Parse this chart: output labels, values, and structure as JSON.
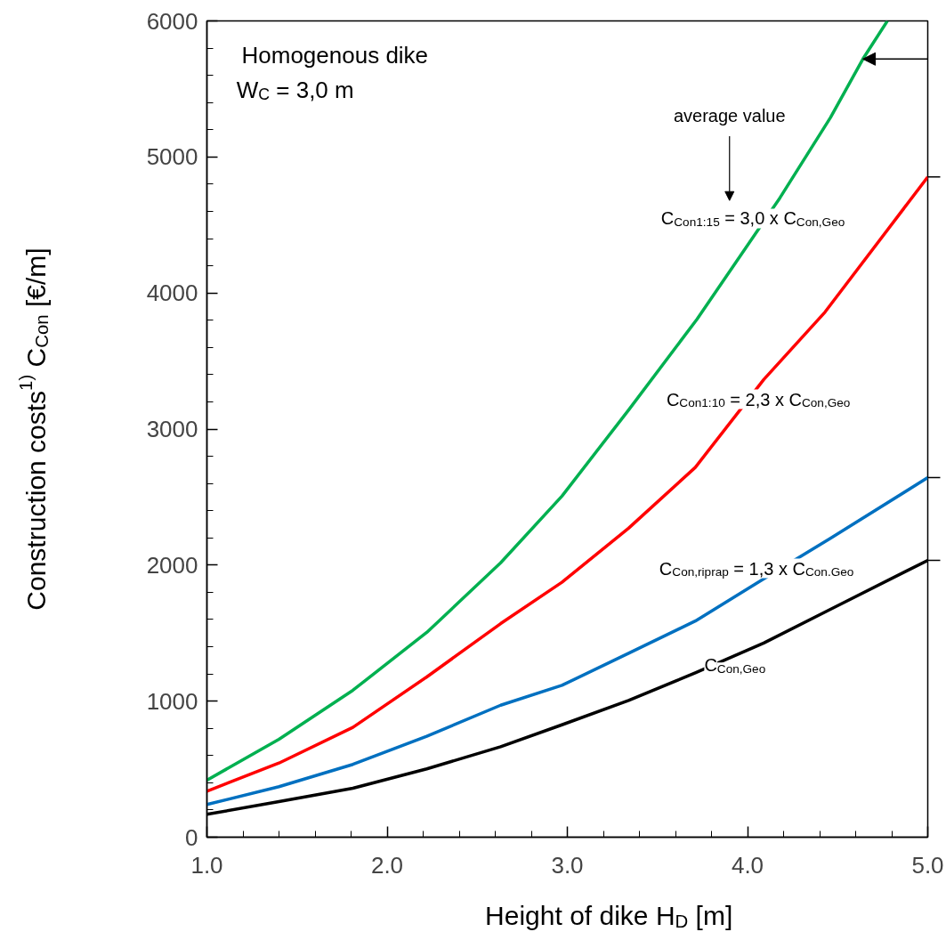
{
  "chart_data": {
    "type": "line",
    "xlabel": "Height of dike H$_{D}$ [m]",
    "ylabel": "Construction costs$^{1)}$ C$_{Con}$ [€/m]",
    "series": [
      {
        "color": "#00b050",
        "x": [
          1.0,
          1.4,
          1.81,
          2.22,
          2.63,
          2.97,
          3.34,
          3.72,
          4.18,
          4.46,
          4.64,
          4.776
        ],
        "values": [
          419,
          720,
          1080,
          1505,
          2017,
          2507,
          3140,
          3808,
          4700,
          5289,
          5720,
          6000
        ]
      },
      {
        "color": "#ff0000",
        "x": [
          1.0,
          1.4,
          1.81,
          2.22,
          2.63,
          2.97,
          3.34,
          3.71,
          4.09,
          4.43,
          5.0
        ],
        "values": [
          338,
          545,
          807,
          1178,
          1570,
          1874,
          2271,
          2718,
          3364,
          3860,
          4853
        ]
      },
      {
        "color": "#0070c0",
        "x": [
          1.0,
          1.4,
          1.81,
          2.22,
          2.63,
          2.97,
          3.34,
          3.71,
          4.09,
          4.46,
          5.0
        ],
        "values": [
          240,
          371,
          535,
          742,
          970,
          1116,
          1352,
          1589,
          1899,
          2197,
          2643
        ]
      },
      {
        "color": "#000000",
        "x": [
          1.0,
          1.4,
          1.81,
          2.22,
          2.63,
          2.97,
          3.34,
          3.71,
          4.09,
          4.46,
          5.0
        ],
        "values": [
          168,
          262,
          360,
          502,
          665,
          826,
          1005,
          1208,
          1427,
          1675,
          2035
        ]
      }
    ],
    "xlim": [
      1.0,
      5.0
    ],
    "ylim": [
      0,
      6000
    ],
    "xticks": [
      {
        "value": 1,
        "label": "1.0"
      },
      {
        "value": 1.2,
        "label": null
      },
      {
        "value": 1.4,
        "label": null
      },
      {
        "value": 1.6,
        "label": null
      },
      {
        "value": 1.8,
        "label": null
      },
      {
        "value": 2,
        "label": "2.0"
      },
      {
        "value": 2.2,
        "label": null
      },
      {
        "value": 2.4,
        "label": null
      },
      {
        "value": 2.6,
        "label": null
      },
      {
        "value": 2.8,
        "label": null
      },
      {
        "value": 3,
        "label": "3.0"
      },
      {
        "value": 3.2,
        "label": null
      },
      {
        "value": 3.4,
        "label": null
      },
      {
        "value": 3.6,
        "label": null
      },
      {
        "value": 3.8,
        "label": null
      },
      {
        "value": 4,
        "label": "4.0"
      },
      {
        "value": 4.2,
        "label": null
      },
      {
        "value": 4.4,
        "label": null
      },
      {
        "value": 4.6,
        "label": null
      },
      {
        "value": 4.8,
        "label": null
      },
      {
        "value": 5,
        "label": "5.0"
      }
    ],
    "yticks": [
      0,
      {
        "value": 200,
        "label": null
      },
      {
        "value": 400,
        "label": null
      },
      {
        "value": 600,
        "label": null
      },
      {
        "value": 800,
        "label": null
      },
      1000,
      {
        "value": 1200,
        "label": null
      },
      {
        "value": 1400,
        "label": null
      },
      {
        "value": 1600,
        "label": null
      },
      {
        "value": 1800,
        "label": null
      },
      2000,
      {
        "value": 2200,
        "label": null
      },
      {
        "value": 2400,
        "label": null
      },
      {
        "value": 2600,
        "label": null
      },
      {
        "value": 2800,
        "label": null
      },
      3000,
      {
        "value": 3200,
        "label": null
      },
      {
        "value": 3400,
        "label": null
      },
      {
        "value": 3600,
        "label": null
      },
      {
        "value": 3800,
        "label": null
      },
      4000,
      {
        "value": 4200,
        "label": null
      },
      {
        "value": 4400,
        "label": null
      },
      {
        "value": 4600,
        "label": null
      },
      {
        "value": 4800,
        "label": null
      },
      5000,
      {
        "value": 5200,
        "label": null
      },
      {
        "value": 5400,
        "label": null
      },
      {
        "value": 5600,
        "label": null
      },
      {
        "value": 5800,
        "label": null
      },
      6000
    ],
    "grid": false,
    "line_style": "solid",
    "annotations": [
      "Homogenous dike",
      "W$_{C}$ = 3,0 m",
      "average value",
      "C$_{Con1:15}$ = 3,0 x C$_{Con,Geo}$",
      "C$_{Con1:10}$ = 2,3 x C$_{Con,Geo}$",
      "C$_{Con,riprap}$ = 1,3 x C$_{Con.Geo}$",
      "C$_{Con,Geo}$"
    ]
  }
}
